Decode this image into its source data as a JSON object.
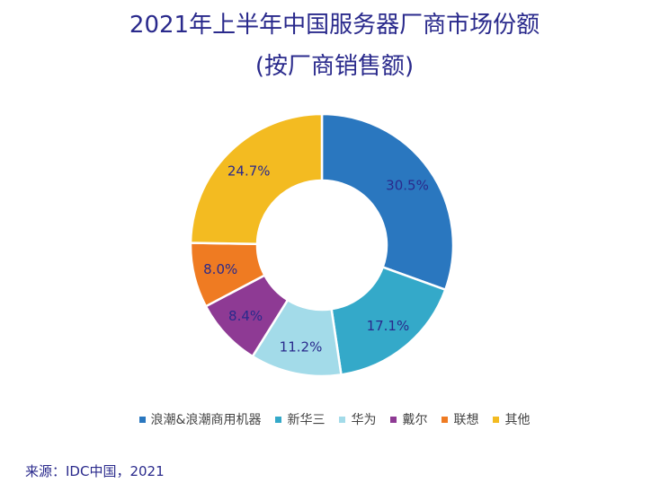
{
  "chart_data": {
    "type": "pie",
    "donut": true,
    "title_lines": [
      "2021年上半年中国服务器厂商市场份额",
      "(按厂商销售额)"
    ],
    "categories": [
      "浪潮&浪潮商用机器",
      "新华三",
      "华为",
      "戴尔",
      "联想",
      "其他"
    ],
    "values": [
      30.5,
      17.1,
      11.2,
      8.4,
      8.0,
      24.7
    ],
    "value_labels": [
      "30.5%",
      "17.1%",
      "11.2%",
      "8.4%",
      "8.0%",
      "24.7%"
    ],
    "colors": [
      "#2a77bf",
      "#34a9c9",
      "#a3dbe9",
      "#8e3a94",
      "#ef7b22",
      "#f3bb21"
    ],
    "legend_position": "bottom",
    "source": "来源：IDC中国，2021"
  }
}
